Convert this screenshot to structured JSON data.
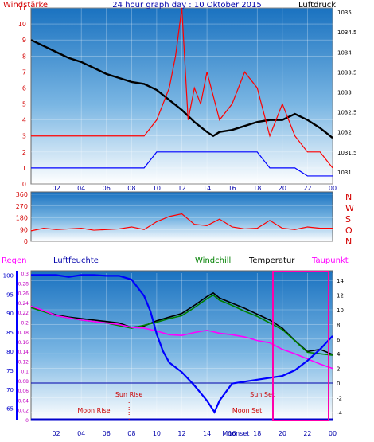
{
  "chart_data": [
    {
      "type": "line",
      "title": "24 hour graph day : 10 Oktober 2015",
      "left_label": "Windstärke",
      "right_label": "Luftdruck",
      "x_ticks": [
        "02",
        "04",
        "06",
        "08",
        "10",
        "12",
        "14",
        "16",
        "18",
        "20",
        "22",
        "00"
      ],
      "left_ticks": [
        "0",
        "1",
        "2",
        "3",
        "4",
        "5",
        "6",
        "7",
        "8",
        "9",
        "10",
        "11"
      ],
      "right_ticks": [
        "1031",
        "1031.5",
        "1032",
        "1032.5",
        "1033",
        "1033.5",
        "1034",
        "1034.5",
        "1035"
      ],
      "left_range": [
        0,
        11
      ],
      "right_range": [
        1030.7,
        1035.1
      ],
      "series": [
        {
          "name": "Luftdruck",
          "axis": "right",
          "color": "#000000",
          "x": [
            0,
            1,
            2,
            3,
            4,
            5,
            6,
            7,
            8,
            9,
            10,
            11,
            12,
            13,
            14,
            14.5,
            15,
            16,
            17,
            18,
            19,
            20,
            21,
            22,
            23,
            24
          ],
          "y": [
            1034.3,
            1034.15,
            1034.0,
            1033.85,
            1033.75,
            1033.6,
            1033.45,
            1033.35,
            1033.25,
            1033.2,
            1033.05,
            1032.8,
            1032.55,
            1032.25,
            1032.0,
            1031.9,
            1032.0,
            1032.05,
            1032.15,
            1032.25,
            1032.3,
            1032.3,
            1032.45,
            1032.3,
            1032.1,
            1031.85
          ]
        },
        {
          "name": "",
          "axis": "left",
          "color": "#ff0000",
          "x": [
            0,
            1,
            2,
            3,
            4,
            5,
            6,
            7,
            8,
            9,
            10,
            10.5,
            11,
            11.5,
            12,
            12.5,
            13,
            13.5,
            14,
            15,
            16,
            17,
            18,
            19,
            20,
            21,
            22,
            23,
            24
          ],
          "y": [
            3,
            3,
            3,
            3,
            3,
            3,
            3,
            3,
            3,
            3,
            4,
            5,
            6,
            8,
            11,
            4,
            6,
            5,
            7,
            4,
            5,
            7,
            6,
            3,
            5,
            3,
            2,
            2,
            1
          ]
        },
        {
          "name": "",
          "axis": "left",
          "color": "#0000ff",
          "x": [
            0,
            1,
            2,
            3,
            4,
            5,
            6,
            7,
            8,
            9,
            10,
            11,
            12,
            13,
            14,
            15,
            16,
            17,
            18,
            19,
            20,
            21,
            22,
            23,
            24
          ],
          "y": [
            1,
            1,
            1,
            1,
            1,
            1,
            1,
            1,
            1,
            1,
            2,
            2,
            2,
            2,
            2,
            2,
            2,
            2,
            2,
            1,
            1,
            1,
            0.5,
            0.5,
            0.5
          ]
        }
      ]
    },
    {
      "type": "line",
      "x_ticks": [],
      "left_ticks": [
        "0",
        "90",
        "180",
        "270",
        "360"
      ],
      "right_ticks": [
        "N",
        "W",
        "S",
        "O",
        "N"
      ],
      "left_range": [
        0,
        360
      ],
      "series": [
        {
          "name": "",
          "color": "#ff0000",
          "x": [
            0,
            1,
            2,
            3,
            4,
            5,
            6,
            7,
            8,
            9,
            10,
            11,
            12,
            13,
            14,
            15,
            16,
            17,
            18,
            19,
            20,
            21,
            22,
            23,
            24
          ],
          "y": [
            80,
            100,
            90,
            95,
            100,
            85,
            90,
            95,
            110,
            90,
            150,
            190,
            210,
            130,
            120,
            170,
            110,
            95,
            100,
            160,
            100,
            90,
            110,
            100,
            100
          ]
        }
      ]
    },
    {
      "type": "line",
      "legend": [
        "Regen",
        "Luftfeuchte",
        "Windchill",
        "Temperatur",
        "Taupunkt"
      ],
      "x_ticks": [
        "02",
        "04",
        "06",
        "08",
        "10",
        "12",
        "14",
        "16",
        "18",
        "20",
        "22",
        "00"
      ],
      "humidity_ticks": [
        "65",
        "70",
        "75",
        "80",
        "85",
        "90",
        "95",
        "100"
      ],
      "rain_ticks": [
        "0",
        "0.02",
        "0.04",
        "0.06",
        "0.08",
        "0.1",
        "0.12",
        "0.14",
        "0.16",
        "0.18",
        "0.2",
        "0.22",
        "0.24",
        "0.26",
        "0.28",
        "0.3"
      ],
      "temp_ticks": [
        "-4",
        "-2",
        "0",
        "2",
        "4",
        "6",
        "8",
        "10",
        "12",
        "14"
      ],
      "temp_range": [
        -5,
        15
      ],
      "humidity_range": [
        62,
        100.5
      ],
      "annotations": [
        {
          "text": "Sun Rise",
          "x": 7.8
        },
        {
          "text": "Sun Set",
          "x": 18.4
        },
        {
          "text": "Moon Rise",
          "x": 5.0
        },
        {
          "text": "Moon Set",
          "x": 17.2
        },
        {
          "text": "Moonset",
          "x": 16.3
        }
      ],
      "series": [
        {
          "name": "Temperatur",
          "axis": "temp",
          "color": "#000000",
          "x": [
            0,
            1,
            2,
            3,
            4,
            5,
            6,
            7,
            8,
            9,
            10,
            11,
            12,
            13,
            14,
            14.5,
            15,
            16,
            17,
            18,
            19,
            20,
            21,
            22,
            23,
            24
          ],
          "y": [
            10.5,
            9.8,
            9.3,
            9.0,
            8.8,
            8.6,
            8.4,
            8.2,
            7.6,
            7.8,
            8.5,
            9.0,
            9.5,
            10.6,
            11.8,
            12.3,
            11.6,
            10.9,
            10.2,
            9.4,
            8.6,
            7.5,
            5.8,
            4.3,
            4.6,
            3.9
          ]
        },
        {
          "name": "Windchill",
          "axis": "temp",
          "color": "#008000",
          "x": [
            0,
            2,
            4,
            6,
            8,
            10,
            11,
            12,
            13,
            14,
            14.5,
            15,
            16,
            17,
            18,
            20,
            22,
            24
          ],
          "y": [
            10.3,
            9.2,
            8.6,
            8.2,
            7.5,
            8.3,
            8.8,
            9.2,
            10.3,
            11.5,
            12.0,
            11.3,
            10.6,
            9.8,
            9.1,
            7.3,
            4.2,
            3.8
          ]
        },
        {
          "name": "Taupunkt",
          "axis": "temp",
          "color": "#ff00ff",
          "x": [
            0,
            1,
            2,
            3,
            4,
            5,
            6,
            7,
            8,
            9,
            10,
            11,
            12,
            13,
            14,
            15,
            16,
            17,
            18,
            19,
            20,
            21,
            22,
            23,
            24
          ],
          "y": [
            10.5,
            9.9,
            9.2,
            8.9,
            8.6,
            8.4,
            8.2,
            8.0,
            7.6,
            7.5,
            7.1,
            6.6,
            6.5,
            6.9,
            7.2,
            6.8,
            6.6,
            6.3,
            5.8,
            5.5,
            4.6,
            4.0,
            3.3,
            2.6,
            2.0
          ]
        },
        {
          "name": "Luftfeuchte",
          "axis": "humidity",
          "color": "#0000ff",
          "x": [
            0,
            1,
            2,
            3,
            4,
            5,
            6,
            7,
            8,
            9,
            9.5,
            10,
            10.5,
            11,
            12,
            13,
            14,
            14.6,
            15,
            16,
            17,
            18,
            19,
            20,
            21,
            22,
            23,
            24
          ],
          "y": [
            100,
            100,
            100,
            99.5,
            100,
            100,
            99.8,
            99.8,
            98.8,
            94.5,
            90.5,
            84.5,
            80.0,
            77.0,
            74.5,
            71.0,
            67.0,
            64.0,
            67.0,
            71.5,
            72.0,
            72.5,
            73.0,
            73.5,
            75.0,
            77.5,
            80.5,
            84.0
          ]
        },
        {
          "name": "Regen",
          "axis": "rain",
          "color": "#0000cc",
          "x": [
            0,
            24
          ],
          "y": [
            0,
            0
          ]
        }
      ]
    }
  ]
}
